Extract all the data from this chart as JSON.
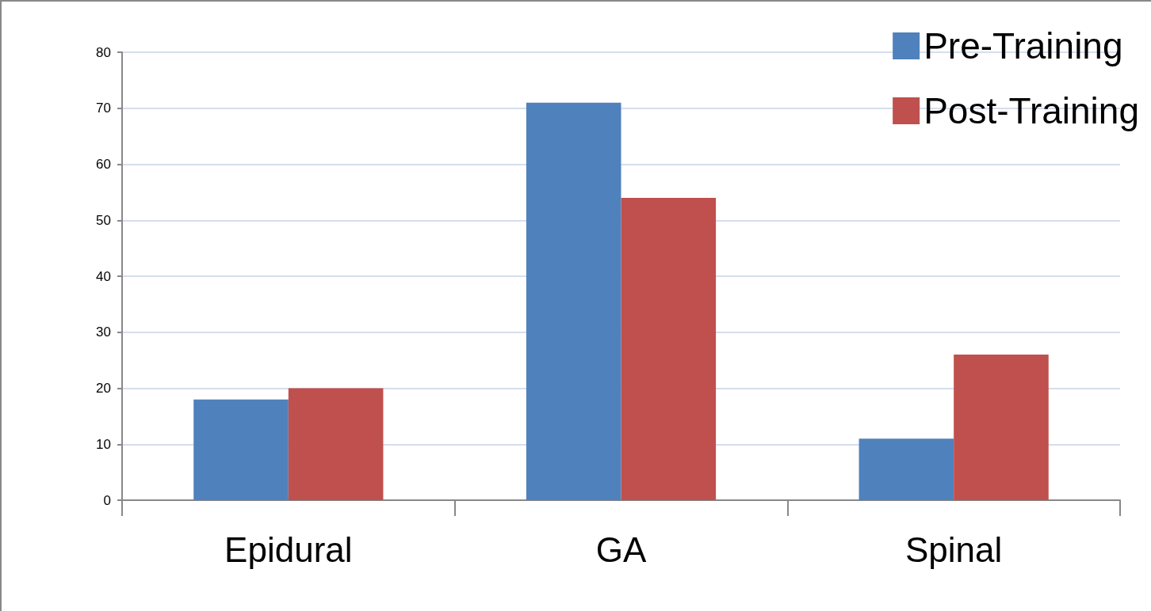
{
  "chart_data": {
    "type": "bar",
    "categories": [
      "Epidural",
      "GA",
      "Spinal"
    ],
    "series": [
      {
        "name": "Pre-Training",
        "color": "#4f81bd",
        "values": [
          18,
          71,
          11
        ]
      },
      {
        "name": "Post-Training",
        "color": "#c0504d",
        "values": [
          20,
          54,
          26
        ]
      }
    ],
    "ylim": [
      0,
      80
    ],
    "yticks": [
      0,
      10,
      20,
      30,
      40,
      50,
      60,
      70,
      80
    ],
    "grid": "y",
    "legend": "top right"
  }
}
